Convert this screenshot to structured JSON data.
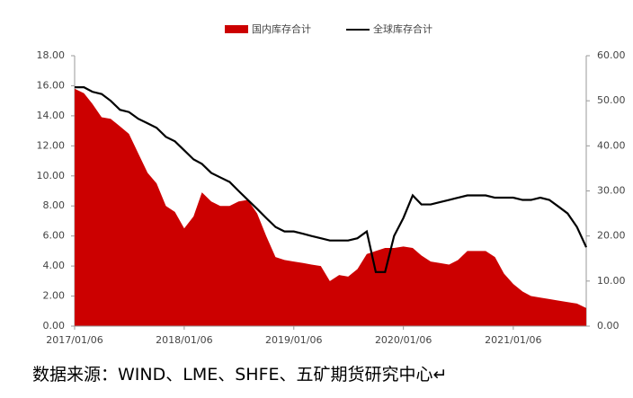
{
  "chart_data": {
    "type": "area-line",
    "x": [
      "2017/01/06",
      "2017/02/06",
      "2017/03/06",
      "2017/04/06",
      "2017/05/06",
      "2017/06/06",
      "2017/07/06",
      "2017/08/06",
      "2017/09/06",
      "2017/10/06",
      "2017/11/06",
      "2017/12/06",
      "2018/01/06",
      "2018/02/06",
      "2018/03/06",
      "2018/04/06",
      "2018/05/06",
      "2018/06/06",
      "2018/07/06",
      "2018/08/06",
      "2018/09/06",
      "2018/10/06",
      "2018/11/06",
      "2018/12/06",
      "2019/01/06",
      "2019/02/06",
      "2019/03/06",
      "2019/04/06",
      "2019/05/06",
      "2019/06/06",
      "2019/07/06",
      "2019/08/06",
      "2019/09/06",
      "2019/10/06",
      "2019/11/06",
      "2019/12/06",
      "2020/01/06",
      "2020/02/06",
      "2020/03/06",
      "2020/04/06",
      "2020/05/06",
      "2020/06/06",
      "2020/07/06",
      "2020/08/06",
      "2020/09/06",
      "2020/10/06",
      "2020/11/06",
      "2020/12/06",
      "2021/01/06",
      "2021/02/06",
      "2021/03/06",
      "2021/04/06",
      "2021/05/06",
      "2021/06/06",
      "2021/07/06",
      "2021/08/06",
      "2021/09/06"
    ],
    "series": [
      {
        "name": "国内库存合计",
        "color": "#cc0000",
        "kind": "area",
        "axis": "y",
        "values": [
          15.8,
          15.5,
          14.8,
          13.9,
          13.8,
          13.3,
          12.8,
          11.5,
          10.2,
          9.5,
          8.0,
          7.6,
          6.5,
          7.3,
          8.9,
          8.3,
          8.0,
          8.0,
          8.3,
          8.4,
          7.5,
          6.0,
          4.6,
          4.4,
          4.3,
          4.2,
          4.1,
          4.0,
          3.0,
          3.4,
          3.3,
          3.8,
          4.8,
          5.0,
          5.2,
          5.2,
          5.3,
          5.2,
          4.7,
          4.3,
          4.2,
          4.1,
          4.4,
          5.0,
          5.0,
          5.0,
          4.6,
          3.5,
          2.8,
          2.3,
          2.0,
          1.9,
          1.8,
          1.7,
          1.6,
          1.5,
          1.2
        ]
      },
      {
        "name": "全球库存合计",
        "color": "#000000",
        "kind": "line",
        "axis": "y2",
        "values": [
          53,
          53,
          52,
          51.5,
          50,
          48,
          47.5,
          46,
          45,
          44,
          42,
          41,
          39,
          37,
          36,
          34,
          33,
          32,
          30,
          28,
          26,
          24,
          22,
          21,
          21,
          20.5,
          20,
          19.5,
          19,
          19,
          19,
          19.5,
          21,
          12,
          12,
          20,
          24,
          29,
          27,
          27,
          27.5,
          28,
          28.5,
          29,
          29,
          29,
          28.5,
          28.5,
          28.5,
          28,
          28,
          28.5,
          28,
          26.5,
          25,
          22,
          17.5
        ]
      }
    ],
    "xlim": [
      "2017/01/06",
      "2021/09/06"
    ],
    "xticks": [
      "2017/01/06",
      "2018/01/06",
      "2019/01/06",
      "2020/01/06",
      "2021/01/06"
    ],
    "ylim": [
      0,
      18
    ],
    "yticks": [
      {
        "value": 0,
        "label": "0.00"
      },
      {
        "value": 2,
        "label": "2.00"
      },
      {
        "value": 4,
        "label": "4.00"
      },
      {
        "value": 6,
        "label": "6.00"
      },
      {
        "value": 8,
        "label": "8.00"
      },
      {
        "value": 10,
        "label": "10.00"
      },
      {
        "value": 12,
        "label": "12.00"
      },
      {
        "value": 14,
        "label": "14.00"
      },
      {
        "value": 16,
        "label": "16.00"
      },
      {
        "value": 18,
        "label": "18.00"
      }
    ],
    "y2lim": [
      0,
      60
    ],
    "y2ticks": [
      {
        "value": 0,
        "label": "0.00"
      },
      {
        "value": 10,
        "label": "10.00"
      },
      {
        "value": 20,
        "label": "20.00"
      },
      {
        "value": 30,
        "label": "30.00"
      },
      {
        "value": 40,
        "label": "40.00"
      },
      {
        "value": 50,
        "label": "50.00"
      },
      {
        "value": 60,
        "label": "60.00"
      }
    ],
    "legend": "top"
  },
  "source": "数据来源：WIND、LME、SHFE、五矿期货研究中心↵"
}
